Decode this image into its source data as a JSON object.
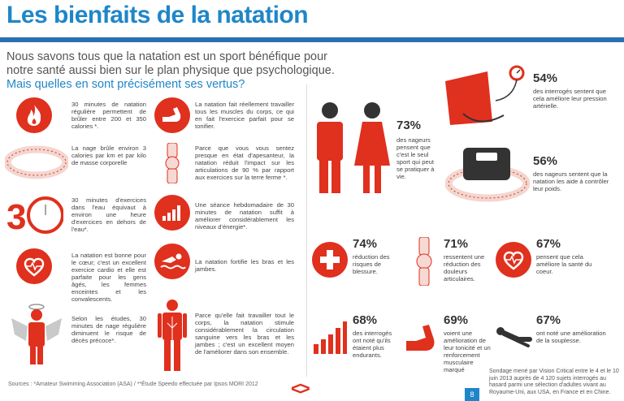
{
  "title": "Les bienfaits de la natation",
  "intro": "Nous savons tous que la natation est un sport bénéfique pour notre santé aussi bien sur le plan physique que psychologique.",
  "question": "Mais quelles en sont précisément ses vertus?",
  "left_items": [
    {
      "icon": "fire-icon",
      "text": "30 minutes de natation régulière permettent de brûler entre 200 et 350 calories *."
    },
    {
      "icon": "measuring-tape-icon",
      "text": "La nage brûle environ 3 calories par km et par kilo de masse corporelle"
    },
    {
      "icon": "number-30-clock-icon",
      "text": "30 minutes d'exercices dans l'eau équivaut à environ une heure d'exercices en dehors de l'eau*."
    },
    {
      "icon": "heart-icon",
      "text": "La natation est bonne pour le cœur; c'est un excellent exercice cardio et elle est parfaite pour les gens âgés, les femmes enceintes et les convalescents."
    },
    {
      "icon": "angel-icon",
      "text": "Selon les études, 30 minutes de nage régulière diminuent le risque de décès précoce*."
    }
  ],
  "mid_items": [
    {
      "icon": "flexed-arm-icon",
      "text": "La natation fait réellement travailler tous les muscles du corps, ce qui en fait l'exercice parfait pour se tonifier."
    },
    {
      "icon": "knee-joint-icon",
      "text": "Parce que vous vous sentez presque en état d'apesanteur, la natation réduit l'impact sur les articulations de 90 % par rapport aux exercices sur la terre ferme *."
    },
    {
      "icon": "energy-bars-icon",
      "text": "Une séance hebdomadaire de 30 minutes de natation suffit à améliorer considérablement les niveaux d'énergie*."
    },
    {
      "icon": "swimmer-icon",
      "text": "La natation fortifie les bras et les jambes."
    },
    {
      "icon": "body-circulation-icon",
      "text": "Parce qu'elle fait travailler tout le corps, la natation stimule considérablement la circulation sanguine vers les bras et les jambes ; c'est un excellent moyen de l'améliorer dans son ensemble."
    }
  ],
  "stats": {
    "people": {
      "pct": "73%",
      "text": "des nageurs pensent que c'est le seul sport qui peut se pratiquer à vie."
    },
    "pressure": {
      "pct": "54%",
      "text": "des interrogés sentent que cela améliore leur pression artérielle."
    },
    "scale": {
      "pct": "56%",
      "text": "des nageurs sentent que la natation les aide à contrôler leur poids."
    },
    "stress": {
      "pct": "74%",
      "text": "réduction des risques de blessure."
    },
    "joint": {
      "pct": "71%",
      "text": "ressentent une réduction des douleurs articulaires."
    },
    "heart": {
      "pct": "67%",
      "text": "pensent que cela améliore la santé du coeur."
    },
    "energy": {
      "pct": "68%",
      "text": "des interrogés ont noté qu'ils étaient plus endurants."
    },
    "muscle": {
      "pct": "69%",
      "text": "voient une amélioration de leur tonicité et un renforcement musculaire marqué"
    },
    "stretch": {
      "pct": "67%",
      "text": "ont noté une amélioration de la souplesse."
    }
  },
  "footer": {
    "sources": "Sources : *Amateur Swimming Association (ASA) / **Étude Speedo effectuée par Ipsos MORI 2012",
    "nav": "<>",
    "page": "8",
    "survey": "Sondage mené par Vision Critical entre le 4 et le 10 juin 2013 auprès de 4 120 sujets interrogés au hasard parmi une sélection d'adultes vivant au Royaume-Uni, aux USA, en France et en Chine."
  },
  "colors": {
    "accent": "#e0301e",
    "blue": "#1f86c8",
    "rule": "#2a6fb2"
  }
}
